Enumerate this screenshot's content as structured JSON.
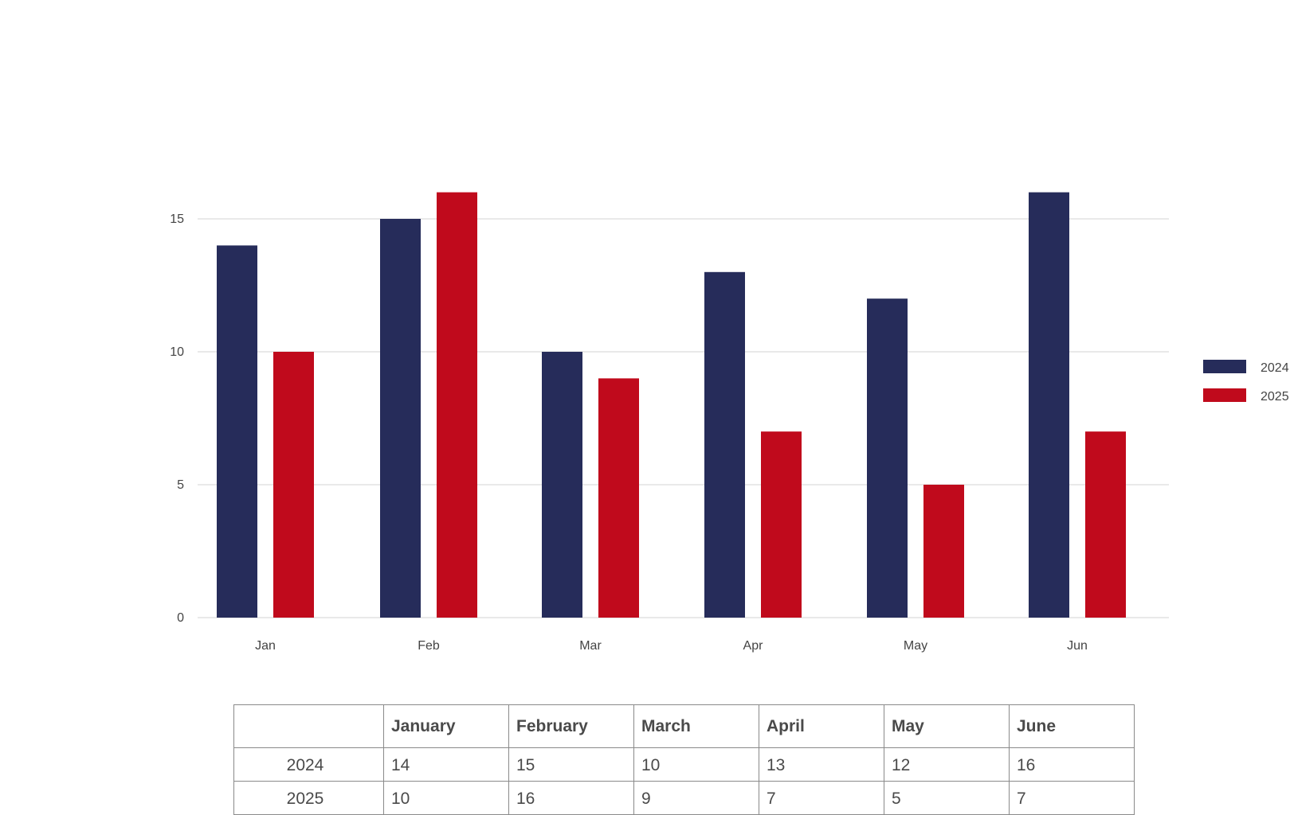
{
  "chart_data": {
    "type": "bar",
    "categories": [
      "Jan",
      "Feb",
      "Mar",
      "Apr",
      "May",
      "Jun"
    ],
    "series": [
      {
        "name": "2024",
        "values": [
          14,
          15,
          10,
          13,
          12,
          16
        ]
      },
      {
        "name": "2025",
        "values": [
          10,
          16,
          9,
          7,
          5,
          7
        ]
      }
    ],
    "yticks": [
      0,
      5,
      10,
      15
    ],
    "ylim": [
      0,
      16
    ],
    "grid": true,
    "legend": "right",
    "colors": {
      "2024": "#262c5a",
      "2025": "#c00a1c"
    }
  },
  "table": {
    "columns": [
      "",
      "January",
      "February",
      "March",
      "April",
      "May",
      "June"
    ],
    "rows": [
      {
        "label": "2024",
        "cells": [
          "14",
          "15",
          "10",
          "13",
          "12",
          "16"
        ]
      },
      {
        "label": "2025",
        "cells": [
          "10",
          "16",
          "9",
          "7",
          "5",
          "7"
        ]
      }
    ]
  }
}
